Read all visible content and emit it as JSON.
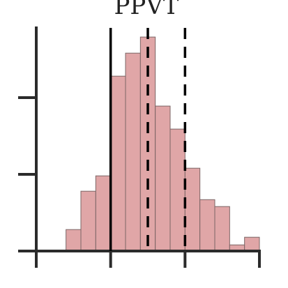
{
  "chart_data": {
    "type": "bar",
    "title": "PPVT",
    "xlabel": "",
    "ylabel": "",
    "x_range": [
      -2,
      4
    ],
    "y_range": [
      0,
      0.3
    ],
    "x_ticks": [
      -2,
      0,
      2,
      4
    ],
    "y_ticks": [
      0,
      0.1,
      0.2
    ],
    "grid": false,
    "bins": [
      {
        "start": -1.2,
        "end": -0.8,
        "value": 0.028
      },
      {
        "start": -0.8,
        "end": -0.4,
        "value": 0.078
      },
      {
        "start": -0.4,
        "end": 0.0,
        "value": 0.098
      },
      {
        "start": 0.0,
        "end": 0.4,
        "value": 0.228
      },
      {
        "start": 0.4,
        "end": 0.8,
        "value": 0.258
      },
      {
        "start": 0.8,
        "end": 1.2,
        "value": 0.279
      },
      {
        "start": 1.2,
        "end": 1.6,
        "value": 0.189
      },
      {
        "start": 1.6,
        "end": 2.0,
        "value": 0.159
      },
      {
        "start": 2.0,
        "end": 2.4,
        "value": 0.108
      },
      {
        "start": 2.4,
        "end": 2.8,
        "value": 0.067
      },
      {
        "start": 2.8,
        "end": 3.2,
        "value": 0.058
      },
      {
        "start": 3.2,
        "end": 3.6,
        "value": 0.008
      },
      {
        "start": 3.6,
        "end": 4.0,
        "value": 0.018
      }
    ],
    "reference_lines": [
      {
        "x": 0,
        "style": "solid"
      },
      {
        "x": 1,
        "style": "dashed"
      },
      {
        "x": 2,
        "style": "dashed"
      }
    ],
    "colors": {
      "bar_fill": "#e0a6a7",
      "bar_edge": "#7b6565",
      "axis": "#2b2b2b",
      "reference_line": "#000000",
      "title": "#222222"
    }
  }
}
